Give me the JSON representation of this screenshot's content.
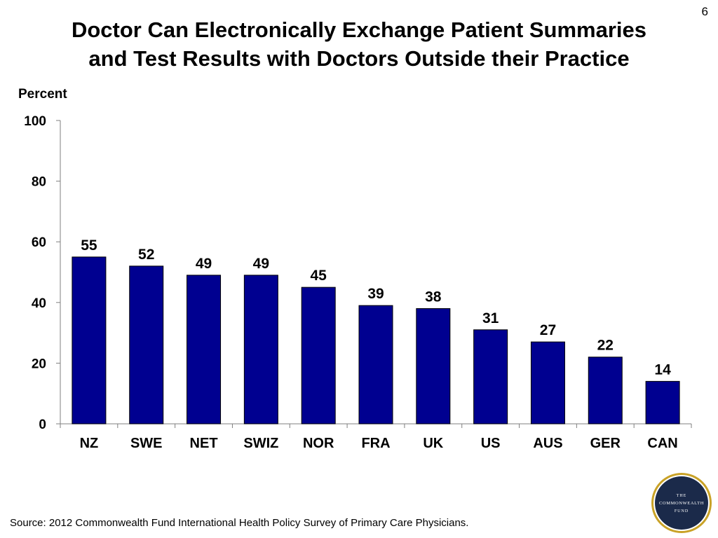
{
  "slide_number": "6",
  "title_lines": [
    "Doctor Can Electronically Exchange Patient Summaries",
    "and Test Results with Doctors Outside their Practice"
  ],
  "source": "Source: 2012 Commonwealth Fund International Health Policy Survey of Primary Care Physicians.",
  "logo": {
    "lines": [
      "THE",
      "COMMONWEALTH",
      "FUND"
    ],
    "colors": {
      "ring": "#c9a227",
      "fill": "#1b2a4a",
      "text": "#ffffff"
    }
  },
  "colors": {
    "bar": "#000090",
    "axis": "#7f7f7f"
  },
  "chart_data": {
    "type": "bar",
    "title": "Doctor Can Electronically Exchange Patient Summaries and Test Results with Doctors Outside their Practice",
    "xlabel": "",
    "ylabel": "Percent",
    "ylim": [
      0,
      100
    ],
    "yticks": [
      0,
      20,
      40,
      60,
      80,
      100
    ],
    "grid": false,
    "categories": [
      "NZ",
      "SWE",
      "NET",
      "SWIZ",
      "NOR",
      "FRA",
      "UK",
      "US",
      "AUS",
      "GER",
      "CAN"
    ],
    "values": [
      55,
      52,
      49,
      49,
      45,
      39,
      38,
      31,
      27,
      22,
      14
    ]
  }
}
